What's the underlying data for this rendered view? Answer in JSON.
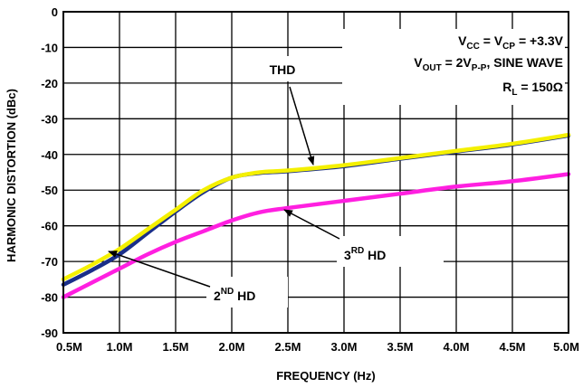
{
  "chart_data": {
    "type": "line",
    "xlabel": "FREQUENCY (Hz)",
    "ylabel": "HARMONIC DISTORTION (dBc)",
    "xlim": [
      0.5,
      5.0
    ],
    "ylim": [
      -90,
      0
    ],
    "x_ticks": [
      0.5,
      1.0,
      1.5,
      2.0,
      2.5,
      3.0,
      3.5,
      4.0,
      4.5,
      5.0
    ],
    "x_tick_labels": [
      "0.5M",
      "1.0M",
      "1.5M",
      "2.0M",
      "2.5M",
      "3.0M",
      "3.5M",
      "4.0M",
      "4.5M",
      "5.0M"
    ],
    "y_ticks": [
      0,
      -10,
      -20,
      -30,
      -40,
      -50,
      -60,
      -70,
      -80,
      -90
    ],
    "y_tick_labels": [
      "0",
      "-10",
      "-20",
      "-30",
      "-40",
      "-50",
      "-60",
      "-70",
      "-80",
      "-90"
    ],
    "grid": true,
    "conditions": {
      "line1": {
        "a": "V",
        "a_sub": "CC",
        "b": " = V",
        "b_sub": "CP",
        "c": " = +3.3V"
      },
      "line2": {
        "a": "V",
        "a_sub": "OUT",
        "b": " = 2V",
        "b_sub": "P-P",
        "c": ", SINE WAVE"
      },
      "line3": {
        "a": "R",
        "a_sub": "L",
        "b": " = 150Ω"
      }
    },
    "annotations": {
      "thd": "THD",
      "hd3": {
        "base": "3",
        "sup": "RD",
        "rest": " HD"
      },
      "hd2": {
        "base": "2",
        "sup": "ND",
        "rest": " HD"
      }
    },
    "series": [
      {
        "name": "THD",
        "color": "#f4f000",
        "x": [
          0.5,
          0.75,
          1.0,
          1.25,
          1.5,
          1.75,
          2.0,
          2.25,
          2.5,
          3.0,
          3.5,
          4.0,
          4.5,
          5.0
        ],
        "y": [
          -75,
          -71,
          -66.5,
          -61,
          -55.5,
          -50,
          -46.5,
          -45,
          -44.5,
          -43,
          -41,
          -39,
          -37,
          -34.5
        ]
      },
      {
        "name": "2ND HD",
        "color": "#1a2f8a",
        "x": [
          0.5,
          0.75,
          1.0,
          1.25,
          1.5,
          1.75,
          2.0,
          2.25,
          2.5,
          3.0,
          3.5,
          4.0,
          4.5,
          5.0
        ],
        "y": [
          -76.5,
          -72.5,
          -68,
          -62,
          -56,
          -50.5,
          -46.5,
          -45.2,
          -44.7,
          -43.3,
          -41.2,
          -39.2,
          -37.2,
          -34.7
        ]
      },
      {
        "name": "3RD HD",
        "color": "#ff1fe0",
        "x": [
          0.5,
          0.75,
          1.0,
          1.25,
          1.5,
          1.75,
          2.0,
          2.25,
          2.5,
          3.0,
          3.5,
          4.0,
          4.5,
          5.0
        ],
        "y": [
          -80,
          -76,
          -72,
          -68,
          -64.5,
          -61.5,
          -58.5,
          -56.2,
          -55,
          -53,
          -51,
          -49,
          -47.5,
          -45.5
        ]
      }
    ]
  }
}
